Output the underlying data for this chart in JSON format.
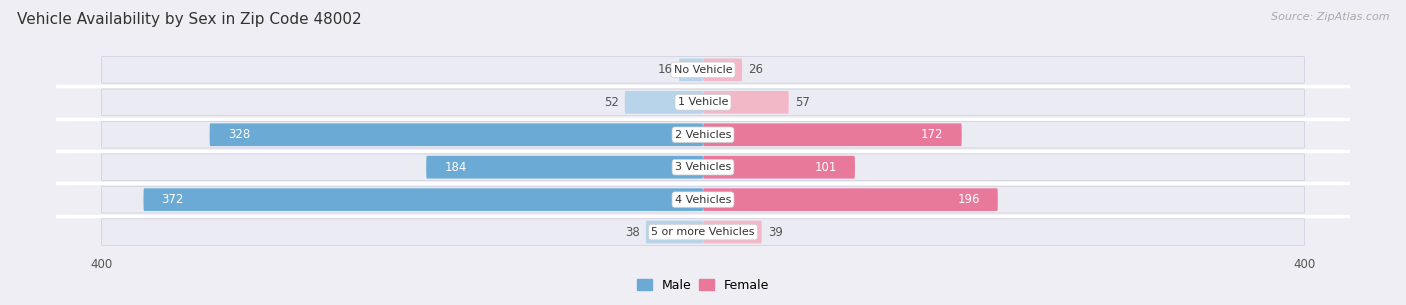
{
  "title": "Vehicle Availability by Sex in Zip Code 48002",
  "source": "Source: ZipAtlas.com",
  "categories": [
    "No Vehicle",
    "1 Vehicle",
    "2 Vehicles",
    "3 Vehicles",
    "4 Vehicles",
    "5 or more Vehicles"
  ],
  "male_values": [
    16,
    52,
    328,
    184,
    372,
    38
  ],
  "female_values": [
    26,
    57,
    172,
    101,
    196,
    39
  ],
  "male_color_dark": "#6aaad4",
  "male_color_light": "#b8d4ea",
  "female_color_dark": "#e8799a",
  "female_color_light": "#f2b8c8",
  "x_max": 400,
  "background_color": "#eeeef4",
  "row_bg_color": "#e0e0ea",
  "row_bg_color_alt": "#e8e8f2",
  "title_fontsize": 11,
  "source_fontsize": 8,
  "bar_label_fontsize": 8.5,
  "category_fontsize": 8,
  "threshold": 100
}
